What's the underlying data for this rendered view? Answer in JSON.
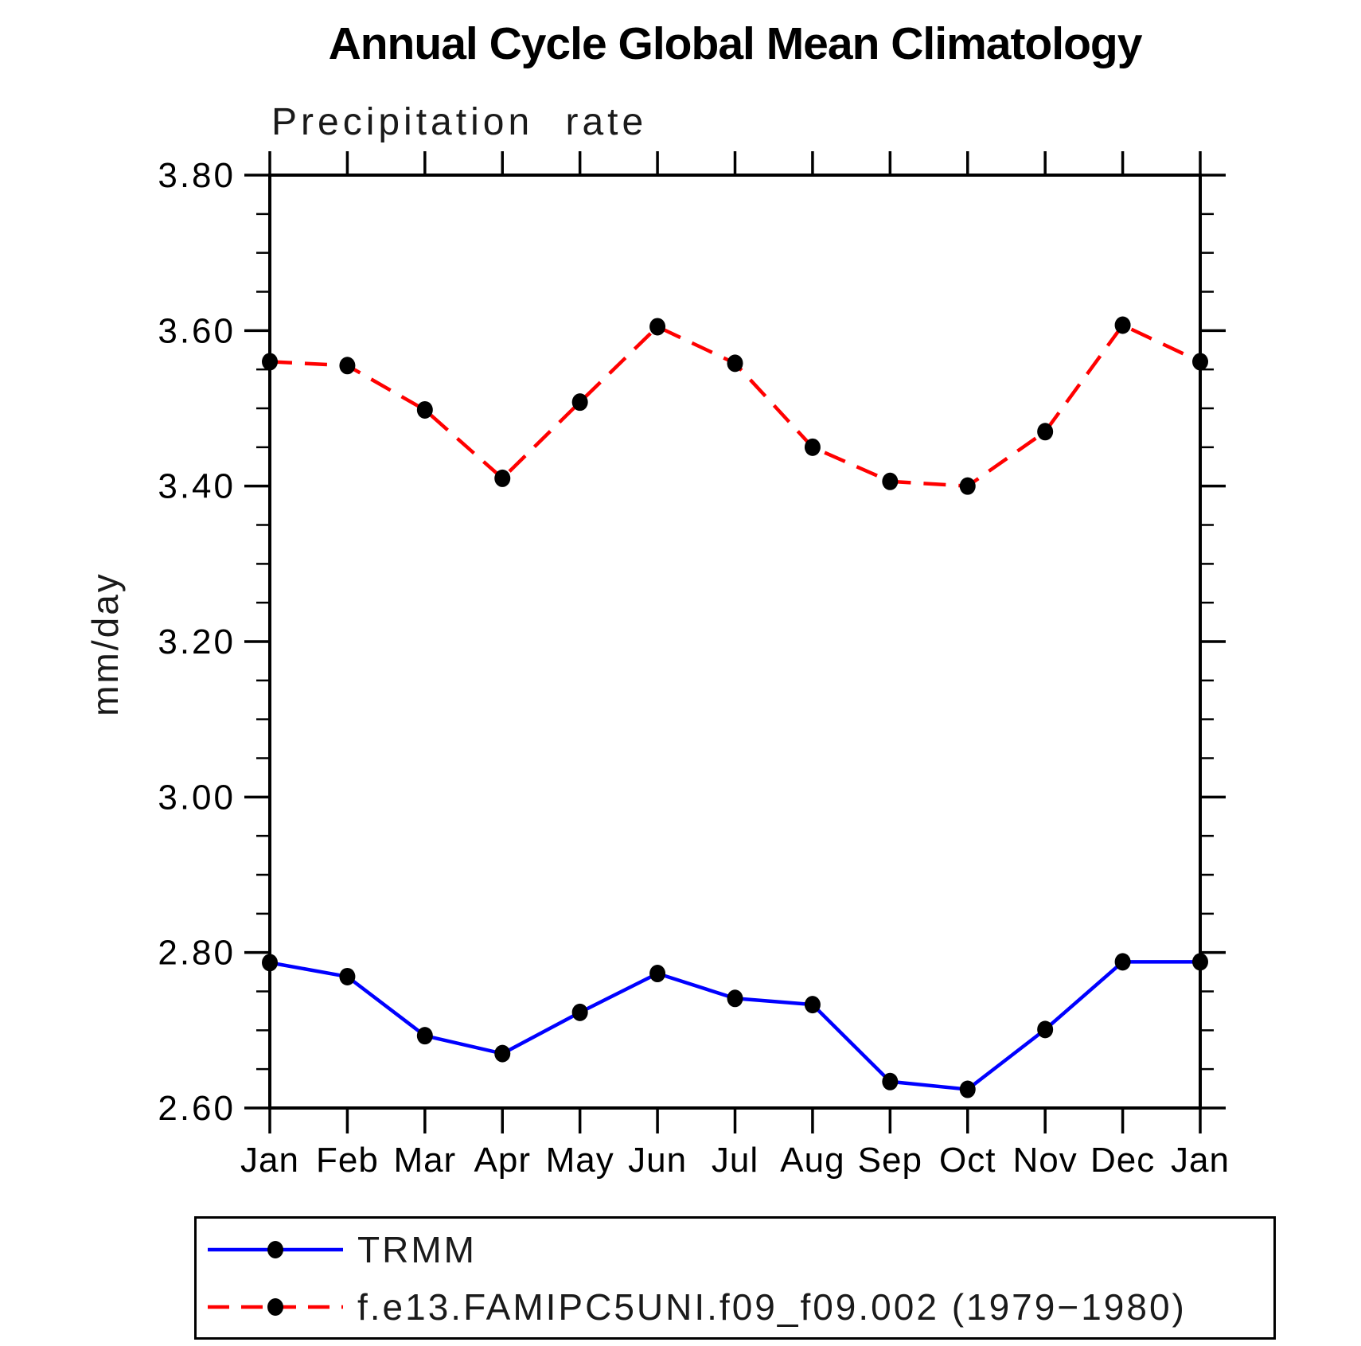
{
  "header": {
    "title": "Annual Cycle Global Mean Climatology",
    "subtitle": "Precipitation rate"
  },
  "axes": {
    "ylabel": "mm/day",
    "y_tick_labels": [
      "3.80",
      "3.60",
      "3.40",
      "3.20",
      "3.00",
      "2.80",
      "2.60"
    ],
    "x_tick_labels": [
      "Jan",
      "Feb",
      "Mar",
      "Apr",
      "May",
      "Jun",
      "Jul",
      "Aug",
      "Sep",
      "Oct",
      "Nov",
      "Dec",
      "Jan"
    ]
  },
  "chart_data": {
    "type": "line",
    "title": "Annual Cycle Global Mean Climatology",
    "subtitle": "Precipitation rate",
    "ylabel": "mm/day",
    "xlabel": "",
    "categories": [
      "Jan",
      "Feb",
      "Mar",
      "Apr",
      "May",
      "Jun",
      "Jul",
      "Aug",
      "Sep",
      "Oct",
      "Nov",
      "Dec",
      "Jan"
    ],
    "ylim": [
      2.6,
      3.8
    ],
    "y_major_step": 0.2,
    "y_minor_step": 0.05,
    "grid": false,
    "legend_position": "bottom-left-box",
    "series": [
      {
        "name": "TRMM",
        "color": "#0000ff",
        "line_style": "solid",
        "marker": "filled-circle",
        "marker_color": "#000000",
        "values": [
          2.787,
          2.769,
          2.693,
          2.67,
          2.723,
          2.773,
          2.741,
          2.733,
          2.634,
          2.624,
          2.701,
          2.788,
          2.788
        ]
      },
      {
        "name": "f.e13.FAMIPC5UNI.f09_f09.002 (1979−1980)",
        "color": "#ff0000",
        "line_style": "dashed",
        "marker": "filled-circle",
        "marker_color": "#000000",
        "values": [
          3.56,
          3.555,
          3.498,
          3.41,
          3.508,
          3.605,
          3.558,
          3.45,
          3.406,
          3.4,
          3.47,
          3.607,
          3.56
        ]
      }
    ]
  }
}
